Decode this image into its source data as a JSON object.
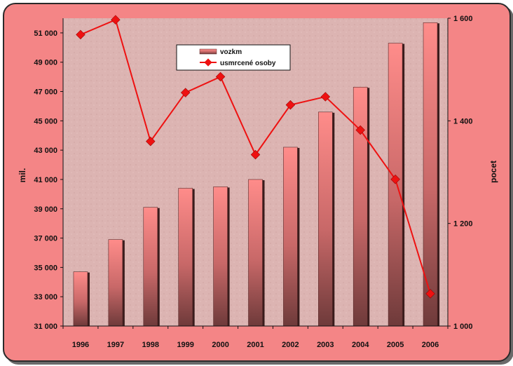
{
  "chart_data": {
    "type": "bar+line",
    "categories": [
      "1996",
      "1997",
      "1998",
      "1999",
      "2000",
      "2001",
      "2002",
      "2003",
      "2004",
      "2005",
      "2006"
    ],
    "series": [
      {
        "name": "vozkm",
        "type": "bar",
        "axis": "left",
        "color": "#e07070",
        "values": [
          34700,
          36900,
          39100,
          40400,
          40500,
          41000,
          43200,
          45600,
          47300,
          50300,
          51700
        ]
      },
      {
        "name": "usmrcené osoby",
        "type": "line",
        "axis": "right",
        "color": "#ee1111",
        "values": [
          1568,
          1597,
          1360,
          1455,
          1486,
          1334,
          1431,
          1447,
          1382,
          1286,
          1063
        ]
      }
    ],
    "y_left": {
      "label": "mil.",
      "range": [
        31000,
        52000
      ],
      "ticks": [
        31000,
        33000,
        35000,
        37000,
        39000,
        41000,
        43000,
        45000,
        47000,
        49000,
        51000
      ],
      "tick_labels": [
        "31 000",
        "33 000",
        "35 000",
        "37 000",
        "39 000",
        "41 000",
        "43 000",
        "45 000",
        "47 000",
        "49 000",
        "51 000"
      ]
    },
    "y_right": {
      "label": "pocet",
      "range": [
        1000,
        1600
      ],
      "ticks": [
        1000,
        1200,
        1400,
        1600
      ],
      "tick_labels": [
        "1 000",
        "1 200",
        "1 400",
        "1 600"
      ]
    },
    "legend": {
      "position": "top-center",
      "entries": [
        "vozkm",
        "usmrcené osoby"
      ]
    },
    "grid": false
  },
  "colors": {
    "frame": "#f48586",
    "plot_bg": "#dcb4b2",
    "bar_top": "#ff8c8a",
    "bar_bottom": "#6e3a3a",
    "line": "#ee1111"
  }
}
